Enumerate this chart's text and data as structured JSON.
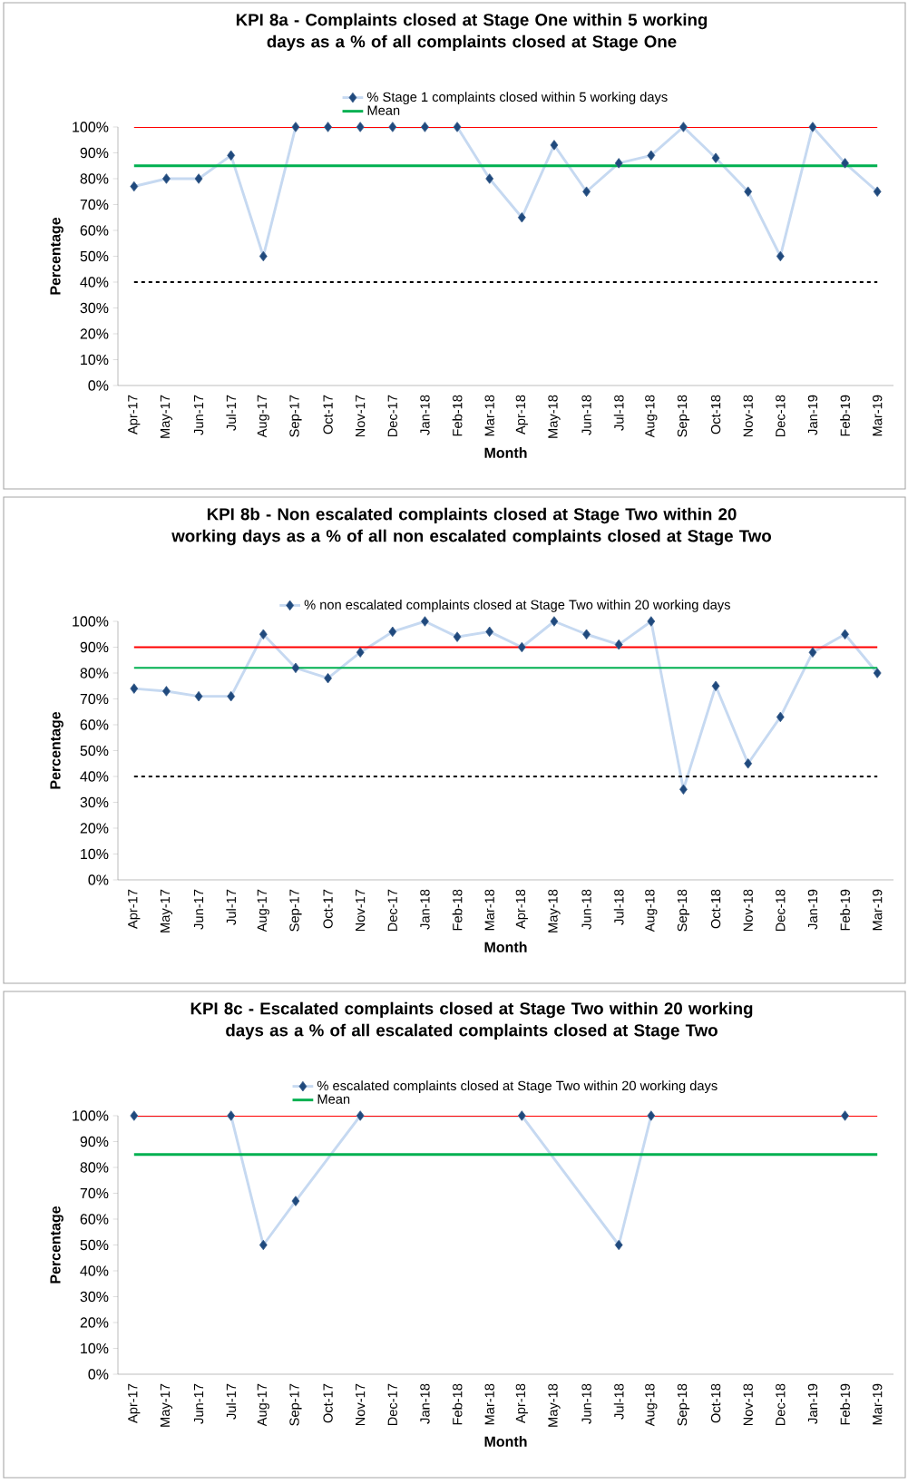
{
  "chart_data": [
    {
      "type": "line",
      "title": "KPI 8a - Complaints closed at Stage One within 5 working days as a % of all complaints closed at Stage One",
      "xlabel": "Month",
      "ylabel": "Percentage",
      "categories": [
        "Apr-17",
        "May-17",
        "Jun-17",
        "Jul-17",
        "Aug-17",
        "Sep-17",
        "Oct-17",
        "Nov-17",
        "Dec-17",
        "Jan-18",
        "Feb-18",
        "Mar-18",
        "Apr-18",
        "May-18",
        "Jun-18",
        "Jul-18",
        "Aug-18",
        "Sep-18",
        "Oct-18",
        "Nov-18",
        "Dec-18",
        "Jan-19",
        "Feb-19",
        "Mar-19"
      ],
      "series": [
        {
          "name": "% Stage 1 complaints closed within 5 working days",
          "color": "#c6d9f1",
          "marker": "diamond",
          "values": [
            77,
            80,
            80,
            89,
            50,
            100,
            100,
            100,
            100,
            100,
            100,
            80,
            65,
            93,
            75,
            86,
            89,
            100,
            88,
            75,
            50,
            100,
            86,
            75
          ]
        },
        {
          "name": "Mean",
          "color": "#00b050",
          "marker": "none",
          "values": [
            85,
            85,
            85,
            85,
            85,
            85,
            85,
            85,
            85,
            85,
            85,
            85,
            85,
            85,
            85,
            85,
            85,
            85,
            85,
            85,
            85,
            85,
            85,
            85
          ]
        }
      ],
      "ref_lines": [
        {
          "axis": "y",
          "value": 100,
          "color": "#ff0000",
          "line_style": "solid"
        },
        {
          "axis": "y",
          "value": 40,
          "color": "#000000",
          "line_style": "dashed"
        }
      ],
      "ylim": [
        0,
        100
      ],
      "yticks": [
        {
          "value": 0,
          "label": "0%"
        },
        {
          "value": 10,
          "label": "10%"
        },
        {
          "value": 20,
          "label": "20%"
        },
        {
          "value": 30,
          "label": "30%"
        },
        {
          "value": 40,
          "label": "40%"
        },
        {
          "value": 50,
          "label": "50%"
        },
        {
          "value": 60,
          "label": "60%"
        },
        {
          "value": 70,
          "label": "70%"
        },
        {
          "value": 80,
          "label": "80%"
        },
        {
          "value": 90,
          "label": "90%"
        },
        {
          "value": 100,
          "label": "100%"
        }
      ],
      "legend": "top",
      "line_style": "solid"
    },
    {
      "type": "line",
      "title": "KPI 8b - Non escalated complaints closed at Stage Two within 20 working days as a % of all non escalated complaints closed at Stage Two",
      "xlabel": "Month",
      "ylabel": "Percentage",
      "categories": [
        "Apr-17",
        "May-17",
        "Jun-17",
        "Jul-17",
        "Aug-17",
        "Sep-17",
        "Oct-17",
        "Nov-17",
        "Dec-17",
        "Jan-18",
        "Feb-18",
        "Mar-18",
        "Apr-18",
        "May-18",
        "Jun-18",
        "Jul-18",
        "Aug-18",
        "Sep-18",
        "Oct-18",
        "Nov-18",
        "Dec-18",
        "Jan-19",
        "Feb-19",
        "Mar-19"
      ],
      "series": [
        {
          "name": "% non escalated complaints closed at Stage Two within 20 working days",
          "color": "#c6d9f1",
          "marker": "diamond",
          "values": [
            74,
            73,
            71,
            71,
            95,
            82,
            78,
            88,
            96,
            100,
            94,
            96,
            90,
            100,
            95,
            91,
            100,
            35,
            75,
            45,
            63,
            88,
            95,
            80
          ]
        }
      ],
      "ref_lines": [
        {
          "axis": "y",
          "value": 90,
          "color": "#ff0000",
          "line_style": "solid"
        },
        {
          "axis": "y",
          "value": 82,
          "color": "#00b050",
          "line_style": "solid"
        },
        {
          "axis": "y",
          "value": 40,
          "color": "#000000",
          "line_style": "dashed"
        }
      ],
      "ylim": [
        0,
        100
      ],
      "yticks": [
        {
          "value": 0,
          "label": "0%"
        },
        {
          "value": 10,
          "label": "10%"
        },
        {
          "value": 20,
          "label": "20%"
        },
        {
          "value": 30,
          "label": "30%"
        },
        {
          "value": 40,
          "label": "40%"
        },
        {
          "value": 50,
          "label": "50%"
        },
        {
          "value": 60,
          "label": "60%"
        },
        {
          "value": 70,
          "label": "70%"
        },
        {
          "value": 80,
          "label": "80%"
        },
        {
          "value": 90,
          "label": "90%"
        },
        {
          "value": 100,
          "label": "100%"
        }
      ],
      "legend": "top",
      "line_style": "solid"
    },
    {
      "type": "line",
      "title": "KPI 8c - Escalated complaints closed at Stage Two within 20 working days as a % of all escalated complaints closed at Stage Two",
      "xlabel": "Month",
      "ylabel": "Percentage",
      "categories": [
        "Apr-17",
        "May-17",
        "Jun-17",
        "Jul-17",
        "Aug-17",
        "Sep-17",
        "Oct-17",
        "Nov-17",
        "Dec-17",
        "Jan-18",
        "Feb-18",
        "Mar-18",
        "Apr-18",
        "May-18",
        "Jun-18",
        "Jul-18",
        "Aug-18",
        "Sep-18",
        "Oct-18",
        "Nov-18",
        "Dec-18",
        "Jan-19",
        "Feb-19",
        "Mar-19"
      ],
      "series": [
        {
          "name": "% escalated complaints closed at Stage Two within 20 working days",
          "color": "#c6d9f1",
          "marker": "diamond",
          "values": [
            100,
            null,
            null,
            100,
            50,
            67,
            null,
            100,
            null,
            null,
            null,
            null,
            100,
            null,
            null,
            50,
            100,
            null,
            null,
            null,
            null,
            null,
            100,
            null
          ]
        },
        {
          "name": "Mean",
          "color": "#00b050",
          "marker": "none",
          "values": [
            85,
            85,
            85,
            85,
            85,
            85,
            85,
            85,
            85,
            85,
            85,
            85,
            85,
            85,
            85,
            85,
            85,
            85,
            85,
            85,
            85,
            85,
            85,
            85
          ]
        }
      ],
      "ref_lines": [
        {
          "axis": "y",
          "value": 100,
          "color": "#ff0000",
          "line_style": "solid"
        }
      ],
      "ylim": [
        0,
        100
      ],
      "yticks": [
        {
          "value": 0,
          "label": "0%"
        },
        {
          "value": 10,
          "label": "10%"
        },
        {
          "value": 20,
          "label": "20%"
        },
        {
          "value": 30,
          "label": "30%"
        },
        {
          "value": 40,
          "label": "40%"
        },
        {
          "value": 50,
          "label": "50%"
        },
        {
          "value": 60,
          "label": "60%"
        },
        {
          "value": 70,
          "label": "70%"
        },
        {
          "value": 80,
          "label": "80%"
        },
        {
          "value": 90,
          "label": "90%"
        },
        {
          "value": 100,
          "label": "100%"
        }
      ],
      "legend": "top",
      "line_style": "solid"
    }
  ]
}
